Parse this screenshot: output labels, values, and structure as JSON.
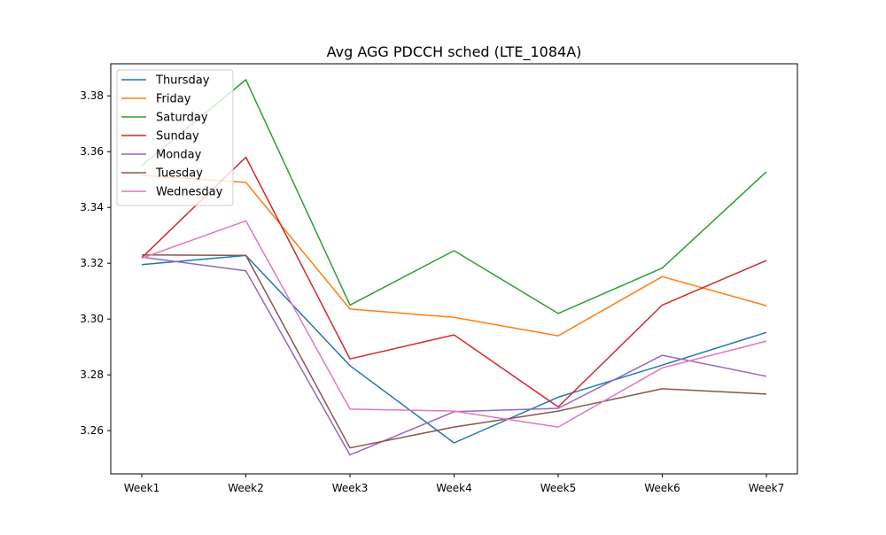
{
  "chart_data": {
    "type": "line",
    "title": "Avg AGG PDCCH sched (LTE_1084A)",
    "xlabel": "",
    "ylabel": "",
    "categories": [
      "Week1",
      "Week2",
      "Week3",
      "Week4",
      "Week5",
      "Week6",
      "Week7"
    ],
    "ylim": [
      3.2445,
      3.3915
    ],
    "yticks": [
      3.26,
      3.28,
      3.3,
      3.32,
      3.34,
      3.36,
      3.38
    ],
    "ytick_labels": [
      "3.26",
      "3.28",
      "3.30",
      "3.32",
      "3.34",
      "3.36",
      "3.38"
    ],
    "grid": false,
    "legend_position": "upper-left",
    "series": [
      {
        "name": "Thursday",
        "color": "#1f77b4",
        "values": [
          3.3195,
          3.3228,
          3.2833,
          3.2556,
          3.272,
          3.2835,
          3.2952
        ]
      },
      {
        "name": "Friday",
        "color": "#ff7f0e",
        "values": [
          3.3515,
          3.349,
          3.3036,
          3.3006,
          3.294,
          3.3152,
          3.3048
        ]
      },
      {
        "name": "Saturday",
        "color": "#2ca02c",
        "values": [
          3.355,
          3.3858,
          3.305,
          3.3245,
          3.302,
          3.3183,
          3.3528
        ]
      },
      {
        "name": "Sunday",
        "color": "#d62728",
        "values": [
          3.322,
          3.358,
          3.2857,
          3.2943,
          3.2685,
          3.305,
          3.321
        ]
      },
      {
        "name": "Monday",
        "color": "#9467bd",
        "values": [
          3.3222,
          3.3173,
          3.2513,
          3.2668,
          3.268,
          3.287,
          3.2795
        ]
      },
      {
        "name": "Tuesday",
        "color": "#8c564b",
        "values": [
          3.323,
          3.3228,
          3.2538,
          3.2613,
          3.267,
          3.275,
          3.2731
        ]
      },
      {
        "name": "Wednesday",
        "color": "#e377c2",
        "values": [
          3.3218,
          3.3352,
          3.2677,
          3.267,
          3.2613,
          3.2825,
          3.2921
        ]
      }
    ]
  }
}
